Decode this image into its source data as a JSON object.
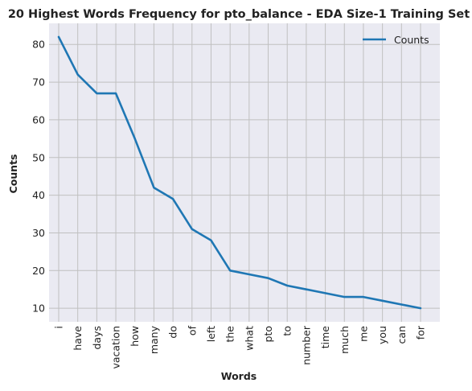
{
  "chart_data": {
    "type": "line",
    "title": "20 Highest Words Frequency for pto_balance - EDA Size-1 Training Set",
    "xlabel": "Words",
    "ylabel": "Counts",
    "categories": [
      "i",
      "have",
      "days",
      "vacation",
      "how",
      "many",
      "do",
      "of",
      "left",
      "the",
      "what",
      "pto",
      "to",
      "number",
      "time",
      "much",
      "me",
      "you",
      "can",
      "for"
    ],
    "series": [
      {
        "name": "Counts",
        "values": [
          82,
          72,
          67,
          67,
          55,
          42,
          39,
          31,
          28,
          20,
          19,
          18,
          16,
          15,
          14,
          13,
          13,
          12,
          11,
          10
        ]
      }
    ],
    "y_ticks": [
      10,
      20,
      30,
      40,
      50,
      60,
      70,
      80
    ],
    "ylim": [
      6.4,
      85.6
    ],
    "grid": true,
    "legend": "top-right",
    "colors": {
      "line": "#1f77b4",
      "plot_background": "#eaeaf2",
      "grid": "#c0c0c0"
    }
  }
}
